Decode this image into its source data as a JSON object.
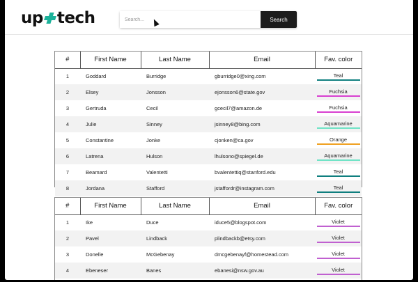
{
  "header": {
    "logo_left": "up",
    "logo_right": "tech",
    "search_placeholder": "Search...",
    "search_button": "Search"
  },
  "table_headers": [
    "#",
    "First Name",
    "Last Name",
    "Email",
    "Fav. color"
  ],
  "colors": {
    "Teal": "#0f7f7f",
    "Fuchsia": "#d83fd0",
    "Aquamarine": "#6fe3c6",
    "Orange": "#f0a020",
    "Violet": "#c060d0"
  },
  "table1": [
    {
      "num": "1",
      "first": "Goddard",
      "last": "Burridge",
      "email": "gburridge0@xing.com",
      "color": "Teal"
    },
    {
      "num": "2",
      "first": "Elsey",
      "last": "Jonsson",
      "email": "ejonsson6@state.gov",
      "color": "Fuchsia"
    },
    {
      "num": "3",
      "first": "Gertruda",
      "last": "Cecil",
      "email": "gcecil7@amazon.de",
      "color": "Fuchsia"
    },
    {
      "num": "4",
      "first": "Julie",
      "last": "Sinney",
      "email": "jsinney8@bing.com",
      "color": "Aquamarine"
    },
    {
      "num": "5",
      "first": "Constantine",
      "last": "Jonke",
      "email": "cjonken@ca.gov",
      "color": "Orange"
    },
    {
      "num": "6",
      "first": "Latrena",
      "last": "Hulson",
      "email": "lhulsono@spiegel.de",
      "color": "Aquamarine"
    },
    {
      "num": "7",
      "first": "Beamard",
      "last": "Valentetti",
      "email": "bvalentettiq@stanford.edu",
      "color": "Teal"
    },
    {
      "num": "8",
      "first": "Jordana",
      "last": "Stafford",
      "email": "jstaffordr@instagram.com",
      "color": "Teal"
    }
  ],
  "table2": [
    {
      "num": "1",
      "first": "Ike",
      "last": "Duce",
      "email": "iduce5@blogspot.com",
      "color": "Violet"
    },
    {
      "num": "2",
      "first": "Pavel",
      "last": "Lindback",
      "email": "plindbackb@etsy.com",
      "color": "Violet"
    },
    {
      "num": "3",
      "first": "Donelle",
      "last": "McGebenay",
      "email": "dmcgebenayf@homestead.com",
      "color": "Violet"
    },
    {
      "num": "4",
      "first": "Ebeneser",
      "last": "Banes",
      "email": "ebanesi@nsw.gov.au",
      "color": "Violet"
    }
  ]
}
